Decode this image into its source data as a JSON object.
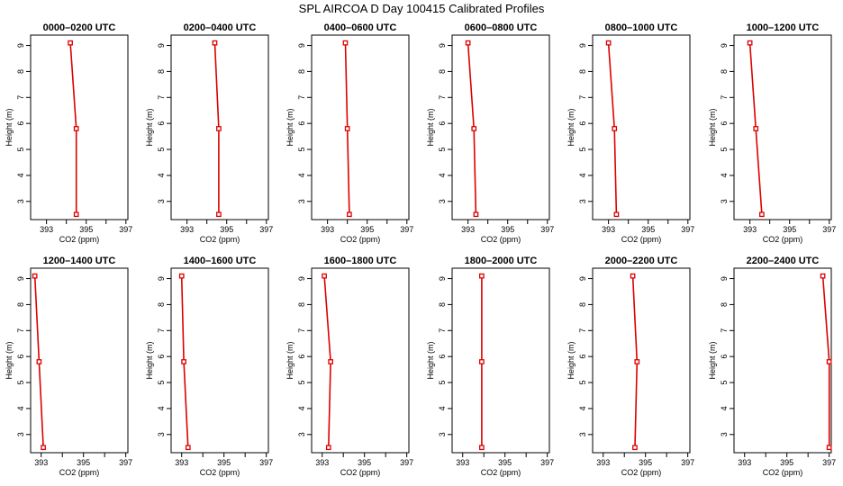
{
  "title": "SPL AIRCOA D  Day 100415  Calibrated Profiles",
  "colors": {
    "series": "#dd0000",
    "axis": "#000000",
    "background": "#ffffff"
  },
  "chart_data": [
    {
      "type": "line",
      "title": "0000–0200 UTC",
      "xlabel": "CO2 (ppm)",
      "ylabel": "Height (m)",
      "xlim": [
        392.2,
        397.1
      ],
      "ylim": [
        2.3,
        9.4
      ],
      "x_ticks": [
        "393",
        "395",
        "397"
      ],
      "y_ticks": [
        "3",
        "4",
        "5",
        "6",
        "7",
        "8",
        "9"
      ],
      "series": [
        {
          "x": [
            394.2,
            394.5,
            394.5
          ],
          "y": [
            9.1,
            5.8,
            2.5
          ]
        }
      ]
    },
    {
      "type": "line",
      "title": "0200–0400 UTC",
      "xlabel": "CO2 (ppm)",
      "ylabel": "Height (m)",
      "xlim": [
        392.2,
        397.1
      ],
      "ylim": [
        2.3,
        9.4
      ],
      "x_ticks": [
        "393",
        "395",
        "397"
      ],
      "y_ticks": [
        "3",
        "4",
        "5",
        "6",
        "7",
        "8",
        "9"
      ],
      "series": [
        {
          "x": [
            394.4,
            394.6,
            394.6
          ],
          "y": [
            9.1,
            5.8,
            2.5
          ]
        }
      ]
    },
    {
      "type": "line",
      "title": "0400–0600 UTC",
      "xlabel": "CO2 (ppm)",
      "ylabel": "Height (m)",
      "xlim": [
        392.2,
        397.1
      ],
      "ylim": [
        2.3,
        9.4
      ],
      "x_ticks": [
        "393",
        "395",
        "397"
      ],
      "y_ticks": [
        "3",
        "4",
        "5",
        "6",
        "7",
        "8",
        "9"
      ],
      "series": [
        {
          "x": [
            393.9,
            394.0,
            394.1
          ],
          "y": [
            9.1,
            5.8,
            2.5
          ]
        }
      ]
    },
    {
      "type": "line",
      "title": "0600–0800 UTC",
      "xlabel": "CO2 (ppm)",
      "ylabel": "Height (m)",
      "xlim": [
        392.2,
        397.1
      ],
      "ylim": [
        2.3,
        9.4
      ],
      "x_ticks": [
        "393",
        "395",
        "397"
      ],
      "y_ticks": [
        "3",
        "4",
        "5",
        "6",
        "7",
        "8",
        "9"
      ],
      "series": [
        {
          "x": [
            393.0,
            393.3,
            393.4
          ],
          "y": [
            9.1,
            5.8,
            2.5
          ]
        }
      ]
    },
    {
      "type": "line",
      "title": "0800–1000 UTC",
      "xlabel": "CO2 (ppm)",
      "ylabel": "Height (m)",
      "xlim": [
        392.2,
        397.1
      ],
      "ylim": [
        2.3,
        9.4
      ],
      "x_ticks": [
        "393",
        "395",
        "397"
      ],
      "y_ticks": [
        "3",
        "4",
        "5",
        "6",
        "7",
        "8",
        "9"
      ],
      "series": [
        {
          "x": [
            393.0,
            393.3,
            393.4
          ],
          "y": [
            9.1,
            5.8,
            2.5
          ]
        }
      ]
    },
    {
      "type": "line",
      "title": "1000–1200 UTC",
      "xlabel": "CO2 (ppm)",
      "ylabel": "Height (m)",
      "xlim": [
        392.2,
        397.1
      ],
      "ylim": [
        2.3,
        9.4
      ],
      "x_ticks": [
        "393",
        "395",
        "397"
      ],
      "y_ticks": [
        "3",
        "4",
        "5",
        "6",
        "7",
        "8",
        "9"
      ],
      "series": [
        {
          "x": [
            393.0,
            393.3,
            393.6
          ],
          "y": [
            9.1,
            5.8,
            2.5
          ]
        }
      ]
    },
    {
      "type": "line",
      "title": "1200–1400 UTC",
      "xlabel": "CO2 (ppm)",
      "ylabel": "Height (m)",
      "xlim": [
        392.5,
        397.1
      ],
      "ylim": [
        2.3,
        9.4
      ],
      "x_ticks": [
        "393",
        "395",
        "397"
      ],
      "y_ticks": [
        "3",
        "4",
        "5",
        "6",
        "7",
        "8",
        "9"
      ],
      "series": [
        {
          "x": [
            392.7,
            392.9,
            393.1
          ],
          "y": [
            9.1,
            5.8,
            2.5
          ]
        }
      ]
    },
    {
      "type": "line",
      "title": "1400–1600 UTC",
      "xlabel": "CO2 (ppm)",
      "ylabel": "Height (m)",
      "xlim": [
        392.5,
        397.1
      ],
      "ylim": [
        2.3,
        9.4
      ],
      "x_ticks": [
        "393",
        "395",
        "397"
      ],
      "y_ticks": [
        "3",
        "4",
        "5",
        "6",
        "7",
        "8",
        "9"
      ],
      "series": [
        {
          "x": [
            393.0,
            393.1,
            393.3
          ],
          "y": [
            9.1,
            5.8,
            2.5
          ]
        }
      ]
    },
    {
      "type": "line",
      "title": "1600–1800 UTC",
      "xlabel": "CO2 (ppm)",
      "ylabel": "Height (m)",
      "xlim": [
        392.5,
        397.1
      ],
      "ylim": [
        2.3,
        9.4
      ],
      "x_ticks": [
        "393",
        "395",
        "397"
      ],
      "y_ticks": [
        "3",
        "4",
        "5",
        "6",
        "7",
        "8",
        "9"
      ],
      "series": [
        {
          "x": [
            393.1,
            393.4,
            393.3
          ],
          "y": [
            9.1,
            5.8,
            2.5
          ]
        }
      ]
    },
    {
      "type": "line",
      "title": "1800–2000 UTC",
      "xlabel": "CO2 (ppm)",
      "ylabel": "Height (m)",
      "xlim": [
        392.5,
        397.1
      ],
      "ylim": [
        2.3,
        9.4
      ],
      "x_ticks": [
        "393",
        "395",
        "397"
      ],
      "y_ticks": [
        "3",
        "4",
        "5",
        "6",
        "7",
        "8",
        "9"
      ],
      "series": [
        {
          "x": [
            393.9,
            393.9,
            393.9
          ],
          "y": [
            9.1,
            5.8,
            2.5
          ]
        }
      ]
    },
    {
      "type": "line",
      "title": "2000–2200 UTC",
      "xlabel": "CO2 (ppm)",
      "ylabel": "Height (m)",
      "xlim": [
        392.5,
        397.1
      ],
      "ylim": [
        2.3,
        9.4
      ],
      "x_ticks": [
        "393",
        "395",
        "397"
      ],
      "y_ticks": [
        "3",
        "4",
        "5",
        "6",
        "7",
        "8",
        "9"
      ],
      "series": [
        {
          "x": [
            394.4,
            394.6,
            394.5
          ],
          "y": [
            9.1,
            5.8,
            2.5
          ]
        }
      ]
    },
    {
      "type": "line",
      "title": "2200–2400 UTC",
      "xlabel": "CO2 (ppm)",
      "ylabel": "Height (m)",
      "xlim": [
        392.5,
        397.1
      ],
      "ylim": [
        2.3,
        9.4
      ],
      "x_ticks": [
        "393",
        "395",
        "397"
      ],
      "y_ticks": [
        "3",
        "4",
        "5",
        "6",
        "7",
        "8",
        "9"
      ],
      "series": [
        {
          "x": [
            396.7,
            397.0,
            397.0
          ],
          "y": [
            9.1,
            5.8,
            2.5
          ]
        }
      ]
    }
  ]
}
